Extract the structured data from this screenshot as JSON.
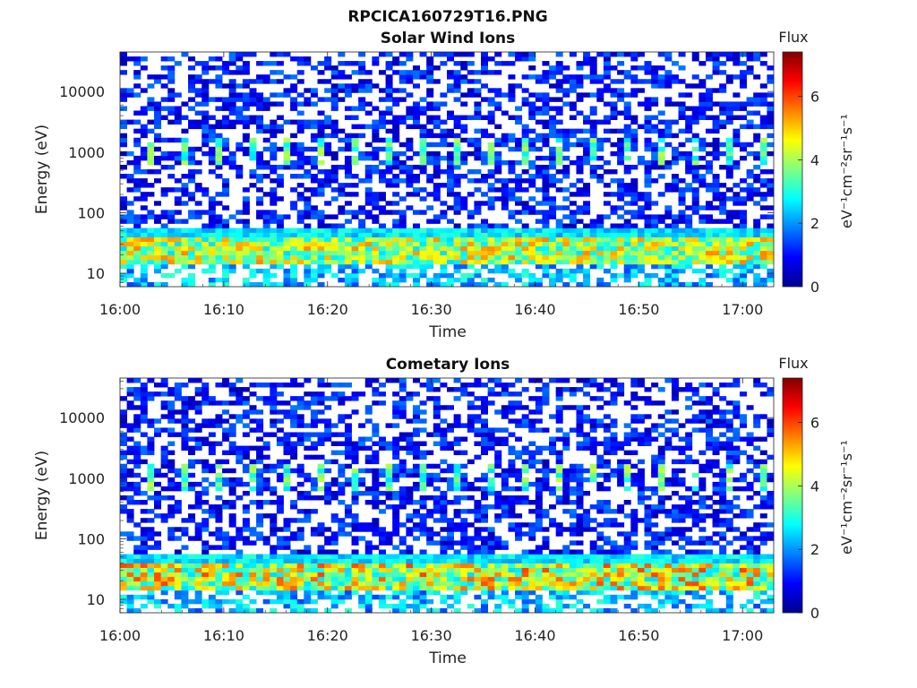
{
  "figure": {
    "title": "RPCICA160729T16.PNG"
  },
  "chart_data": [
    {
      "type": "heatmap",
      "title": "Solar Wind Ions",
      "xlabel": "Time",
      "ylabel": "Energy (eV)",
      "x_range": [
        "16:00",
        "17:03"
      ],
      "x_ticks": [
        "16:00",
        "16:10",
        "16:20",
        "16:30",
        "16:40",
        "16:50",
        "17:00"
      ],
      "y_scale": "log",
      "y_range": [
        6,
        45000
      ],
      "y_ticks": [
        10,
        100,
        1000,
        10000
      ],
      "y_tick_labels": [
        "10",
        "100",
        "1000",
        "10000"
      ],
      "colorbar": {
        "label": "Flux",
        "units_label": "eV⁻¹cm⁻²sr⁻¹s⁻¹",
        "range": [
          0,
          7.4
        ],
        "ticks": [
          0,
          2,
          4,
          6
        ],
        "tick_labels": [
          "0",
          "2",
          "4",
          "6"
        ],
        "colormap": "jet",
        "colors": [
          "#00008f",
          "#0000ff",
          "#0080ff",
          "#00ffff",
          "#80ff80",
          "#ffff00",
          "#ff8000",
          "#ff0000",
          "#800000"
        ]
      },
      "features": {
        "low_energy_band_ev": [
          15,
          55
        ],
        "low_energy_band_flux": [
          2.5,
          5.5
        ],
        "mid_energy_pulses_ev": [
          600,
          1800
        ],
        "mid_energy_pulse_flux": [
          2.5,
          4.2
        ],
        "pulse_period_min": 3.3,
        "background_flux": [
          0.3,
          1.8
        ]
      }
    },
    {
      "type": "heatmap",
      "title": "Cometary Ions",
      "xlabel": "Time",
      "ylabel": "Energy (eV)",
      "x_range": [
        "16:00",
        "17:03"
      ],
      "x_ticks": [
        "16:00",
        "16:10",
        "16:20",
        "16:30",
        "16:40",
        "16:50",
        "17:00"
      ],
      "y_scale": "log",
      "y_range": [
        6,
        45000
      ],
      "y_ticks": [
        10,
        100,
        1000,
        10000
      ],
      "y_tick_labels": [
        "10",
        "100",
        "1000",
        "10000"
      ],
      "colorbar": {
        "label": "Flux",
        "units_label": "eV⁻¹cm⁻²sr⁻¹s⁻¹",
        "range": [
          0,
          7.4
        ],
        "ticks": [
          0,
          2,
          4,
          6
        ],
        "tick_labels": [
          "0",
          "2",
          "4",
          "6"
        ],
        "colormap": "jet",
        "colors": [
          "#00008f",
          "#0000ff",
          "#0080ff",
          "#00ffff",
          "#80ff80",
          "#ffff00",
          "#ff8000",
          "#ff0000",
          "#800000"
        ]
      },
      "features": {
        "low_energy_band_ev": [
          15,
          55
        ],
        "low_energy_band_flux": [
          2.5,
          6.0
        ],
        "mid_energy_pulses_ev": [
          600,
          1800
        ],
        "mid_energy_pulse_flux": [
          2.5,
          4.2
        ],
        "pulse_period_min": 3.3,
        "background_flux": [
          0.3,
          1.8
        ]
      }
    }
  ]
}
